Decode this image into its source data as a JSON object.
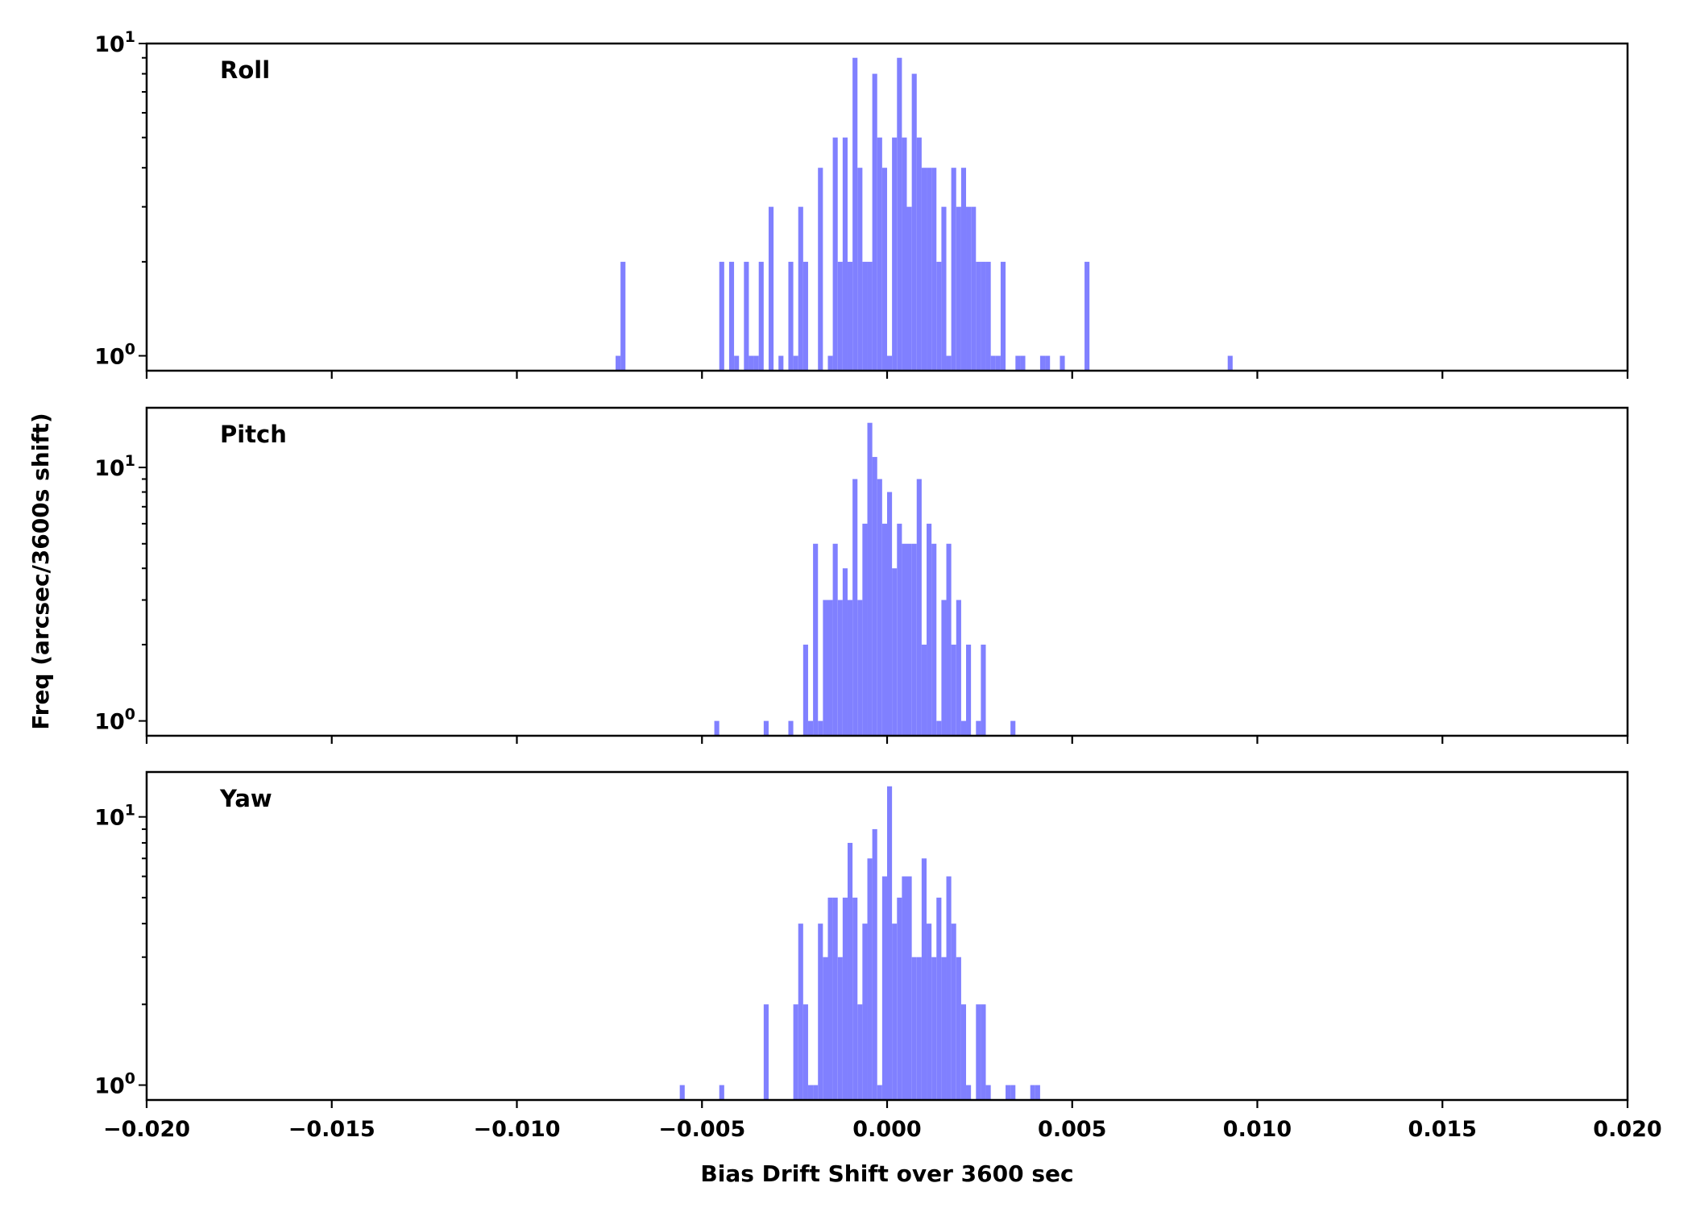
{
  "chart_data": [
    {
      "type": "bar",
      "panel_label": "Roll",
      "y_scale": "log",
      "ylim": [
        0.896,
        10.0
      ],
      "xlim": [
        -0.02,
        0.02
      ],
      "bin_width": 0.000133333,
      "bins": [
        [
          -0.007333,
          1
        ],
        [
          -0.0072,
          2
        ],
        [
          -0.004533,
          2
        ],
        [
          -0.004267,
          2
        ],
        [
          -0.004133,
          1
        ],
        [
          -0.003867,
          2
        ],
        [
          -0.003733,
          1
        ],
        [
          -0.0036,
          1
        ],
        [
          -0.003467,
          2
        ],
        [
          -0.0032,
          3
        ],
        [
          -0.002933,
          1
        ],
        [
          -0.002667,
          2
        ],
        [
          -0.002533,
          1
        ],
        [
          -0.0024,
          3
        ],
        [
          -0.002267,
          2
        ],
        [
          -0.001867,
          4
        ],
        [
          -0.0016,
          1
        ],
        [
          -0.001467,
          5
        ],
        [
          -0.001333,
          2
        ],
        [
          -0.0012,
          5
        ],
        [
          -0.001067,
          2
        ],
        [
          -0.000933,
          9
        ],
        [
          -0.0008,
          4
        ],
        [
          -0.000667,
          2
        ],
        [
          -0.000533,
          2
        ],
        [
          -0.0004,
          8
        ],
        [
          -0.000267,
          5
        ],
        [
          -0.000133,
          4
        ],
        [
          0,
          1
        ],
        [
          0.000133,
          5
        ],
        [
          0.000267,
          9
        ],
        [
          0.0004,
          5
        ],
        [
          0.000533,
          3
        ],
        [
          0.000667,
          8
        ],
        [
          0.0008,
          5
        ],
        [
          0.000933,
          4
        ],
        [
          0.001067,
          4
        ],
        [
          0.0012,
          4
        ],
        [
          0.001333,
          2
        ],
        [
          0.001467,
          3
        ],
        [
          0.0016,
          1
        ],
        [
          0.001733,
          4
        ],
        [
          0.001867,
          3
        ],
        [
          0.002,
          4
        ],
        [
          0.002133,
          3
        ],
        [
          0.002267,
          3
        ],
        [
          0.0024,
          2
        ],
        [
          0.002533,
          2
        ],
        [
          0.002667,
          2
        ],
        [
          0.0028,
          1
        ],
        [
          0.002933,
          1
        ],
        [
          0.003067,
          2
        ],
        [
          0.003467,
          1
        ],
        [
          0.0036,
          1
        ],
        [
          0.004133,
          1
        ],
        [
          0.004267,
          1
        ],
        [
          0.004667,
          1
        ],
        [
          0.005333,
          2
        ],
        [
          0.0092,
          1
        ]
      ]
    },
    {
      "type": "bar",
      "panel_label": "Pitch",
      "y_scale": "log",
      "ylim": [
        0.874,
        17.2
      ],
      "xlim": [
        -0.02,
        0.02
      ],
      "bin_width": 0.000133333,
      "bins": [
        [
          -0.004667,
          1
        ],
        [
          -0.003333,
          1
        ],
        [
          -0.002667,
          1
        ],
        [
          -0.002267,
          2
        ],
        [
          -0.002133,
          1
        ],
        [
          -0.002,
          5
        ],
        [
          -0.001867,
          1
        ],
        [
          -0.001733,
          3
        ],
        [
          -0.0016,
          3
        ],
        [
          -0.001467,
          5
        ],
        [
          -0.001333,
          3
        ],
        [
          -0.0012,
          4
        ],
        [
          -0.001067,
          3
        ],
        [
          -0.000933,
          9
        ],
        [
          -0.0008,
          3
        ],
        [
          -0.000667,
          6
        ],
        [
          -0.000533,
          15
        ],
        [
          -0.0004,
          11
        ],
        [
          -0.000267,
          9
        ],
        [
          -0.000133,
          6
        ],
        [
          0,
          8
        ],
        [
          0.000133,
          4
        ],
        [
          0.000267,
          6
        ],
        [
          0.0004,
          5
        ],
        [
          0.000533,
          5
        ],
        [
          0.000667,
          5
        ],
        [
          0.0008,
          9
        ],
        [
          0.000933,
          2
        ],
        [
          0.001067,
          6
        ],
        [
          0.0012,
          5
        ],
        [
          0.001333,
          1
        ],
        [
          0.001467,
          3
        ],
        [
          0.0016,
          5
        ],
        [
          0.001733,
          2
        ],
        [
          0.001867,
          3
        ],
        [
          0.002,
          1
        ],
        [
          0.002133,
          2
        ],
        [
          0.0024,
          1
        ],
        [
          0.002533,
          2
        ],
        [
          0.003333,
          1
        ]
      ]
    },
    {
      "type": "bar",
      "panel_label": "Yaw",
      "y_scale": "log",
      "ylim": [
        0.88,
        14.7
      ],
      "xlim": [
        -0.02,
        0.02
      ],
      "bin_width": 0.000133333,
      "bins": [
        [
          -0.0056,
          1
        ],
        [
          -0.004533,
          1
        ],
        [
          -0.003333,
          2
        ],
        [
          -0.002533,
          2
        ],
        [
          -0.0024,
          4
        ],
        [
          -0.002267,
          2
        ],
        [
          -0.002133,
          1
        ],
        [
          -0.002,
          1
        ],
        [
          -0.001867,
          4
        ],
        [
          -0.001733,
          3
        ],
        [
          -0.0016,
          5
        ],
        [
          -0.001467,
          5
        ],
        [
          -0.001333,
          3
        ],
        [
          -0.0012,
          5
        ],
        [
          -0.001067,
          8
        ],
        [
          -0.000933,
          5
        ],
        [
          -0.0008,
          2
        ],
        [
          -0.000667,
          4
        ],
        [
          -0.000533,
          7
        ],
        [
          -0.0004,
          9
        ],
        [
          -0.000267,
          1
        ],
        [
          -0.000133,
          6
        ],
        [
          0,
          13
        ],
        [
          0.000133,
          4
        ],
        [
          0.000267,
          5
        ],
        [
          0.0004,
          6
        ],
        [
          0.000533,
          6
        ],
        [
          0.000667,
          3
        ],
        [
          0.0008,
          3
        ],
        [
          0.000933,
          7
        ],
        [
          0.001067,
          4
        ],
        [
          0.0012,
          3
        ],
        [
          0.001333,
          5
        ],
        [
          0.001467,
          3
        ],
        [
          0.0016,
          6
        ],
        [
          0.001733,
          4
        ],
        [
          0.001867,
          3
        ],
        [
          0.002,
          2
        ],
        [
          0.002133,
          1
        ],
        [
          0.0024,
          2
        ],
        [
          0.002533,
          2
        ],
        [
          0.002667,
          1
        ],
        [
          0.0032,
          1
        ],
        [
          0.003333,
          1
        ],
        [
          0.003867,
          1
        ],
        [
          0.004,
          1
        ]
      ]
    }
  ],
  "bar_color": "#8080ff",
  "xticks": [
    -0.02,
    -0.015,
    -0.01,
    -0.005,
    0,
    0.005,
    0.01,
    0.015,
    0.02
  ],
  "xtick_labels": [
    "−0.020",
    "−0.015",
    "−0.010",
    "−0.005",
    "0.000",
    "0.005",
    "0.010",
    "0.015",
    "0.020"
  ],
  "ytick_labels": [
    {
      "base": "10",
      "exp": "0"
    },
    {
      "base": "10",
      "exp": "1"
    }
  ],
  "xlabel": "Bias Drift Shift over 3600 sec",
  "ylabel": "Freq (arcsec/3600s shift)"
}
